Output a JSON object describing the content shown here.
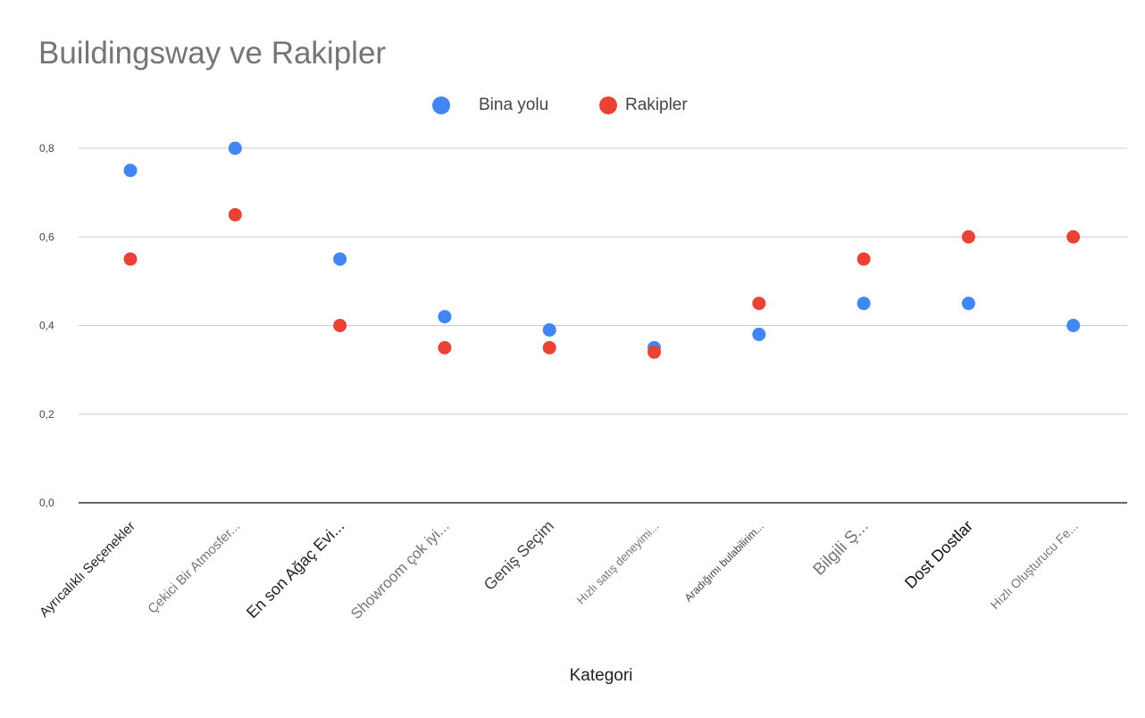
{
  "chart_data": {
    "type": "scatter",
    "title": "Buildingsway ve Rakipler",
    "xlabel": "Kategori",
    "ylabel": "",
    "ylim": [
      0,
      0.8
    ],
    "yticks": [
      "0,0",
      "0,2",
      "0,4",
      "0,6",
      "0,8"
    ],
    "grid": true,
    "legend_position": "top",
    "categories": [
      "Ayrıcalıklı Seçenekler",
      "Çekici Bir Atmosfer...",
      "En son Ağaç Evi...",
      "Showroom çok iyi...",
      "Geniş Seçim",
      "Hızlı satış deneyimi...",
      "Aradığımı bulabilirim...",
      "Bilgili Ş...",
      "Dost Dostlar",
      "Hızlı Oluşturucu Fe..."
    ],
    "series": [
      {
        "name": "Bina yolu",
        "color": "#4285F4",
        "values": [
          0.75,
          0.8,
          0.55,
          0.42,
          0.39,
          0.35,
          0.38,
          0.45,
          0.45,
          0.4
        ]
      },
      {
        "name": "Rakipler",
        "color": "#EA4335",
        "values": [
          0.55,
          0.65,
          0.4,
          0.35,
          0.35,
          0.34,
          0.45,
          0.55,
          0.6,
          0.6
        ]
      }
    ]
  }
}
